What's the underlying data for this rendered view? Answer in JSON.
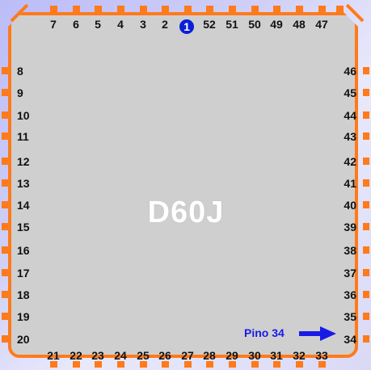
{
  "chip": {
    "name": "D60J",
    "pin1_marker": "1",
    "annotation": "Pino 34"
  },
  "pins": {
    "top": [
      "7",
      "6",
      "5",
      "4",
      "3",
      "2",
      "52",
      "51",
      "50",
      "49",
      "48",
      "47"
    ],
    "left": [
      "8",
      "9",
      "10",
      "11",
      "12",
      "13",
      "14",
      "15",
      "16",
      "17",
      "18",
      "19",
      "20"
    ],
    "right": [
      "46",
      "45",
      "44",
      "43",
      "42",
      "41",
      "40",
      "39",
      "38",
      "37",
      "36",
      "35",
      "34"
    ],
    "bottom": [
      "21",
      "22",
      "23",
      "24",
      "25",
      "26",
      "27",
      "28",
      "29",
      "30",
      "31",
      "32",
      "33"
    ]
  },
  "colors": {
    "pins": "#ff7a1a",
    "body": "#cfcfcf",
    "pin1_marker": "#0a1fd6",
    "annotation": "#1a1ae6"
  }
}
